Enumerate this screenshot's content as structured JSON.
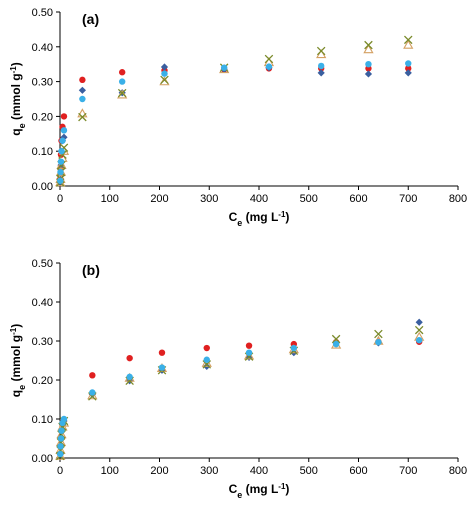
{
  "chart_data": [
    {
      "type": "scatter",
      "panel_label": "(a)",
      "xlabel": "Ce (mg L-1)",
      "ylabel": "qe (mmol g-1)",
      "xlim": [
        0,
        800
      ],
      "ylim": [
        0,
        0.5
      ],
      "xticks": [
        "0",
        "100",
        "200",
        "300",
        "400",
        "500",
        "600",
        "700",
        "800"
      ],
      "yticks": [
        "0.00",
        "0.10",
        "0.20",
        "0.30",
        "0.40",
        "0.50"
      ],
      "grid": false,
      "series": [
        {
          "marker": "circle",
          "color": "#e02020",
          "points": [
            [
              0.5,
              0.02
            ],
            [
              1,
              0.05
            ],
            [
              2,
              0.09
            ],
            [
              3,
              0.13
            ],
            [
              5,
              0.17
            ],
            [
              8,
              0.2
            ],
            [
              45,
              0.305
            ],
            [
              125,
              0.327
            ],
            [
              210,
              0.332
            ],
            [
              330,
              0.335
            ],
            [
              420,
              0.338
            ],
            [
              525,
              0.338
            ],
            [
              620,
              0.338
            ],
            [
              700,
              0.338
            ]
          ]
        },
        {
          "marker": "diamond",
          "color": "#3a5fa0",
          "points": [
            [
              0.5,
              0.01
            ],
            [
              1,
              0.03
            ],
            [
              2,
              0.06
            ],
            [
              3,
              0.1
            ],
            [
              5,
              0.13
            ],
            [
              8,
              0.14
            ],
            [
              45,
              0.275
            ],
            [
              125,
              0.268
            ],
            [
              210,
              0.342
            ],
            [
              330,
              0.335
            ],
            [
              420,
              0.34
            ],
            [
              525,
              0.325
            ],
            [
              620,
              0.322
            ],
            [
              700,
              0.325
            ]
          ]
        },
        {
          "marker": "triangle",
          "color": "#d4a062",
          "points": [
            [
              0.5,
              0.01
            ],
            [
              1,
              0.02
            ],
            [
              2,
              0.04
            ],
            [
              3,
              0.06
            ],
            [
              5,
              0.08
            ],
            [
              8,
              0.1
            ],
            [
              45,
              0.208
            ],
            [
              125,
              0.262
            ],
            [
              210,
              0.3
            ],
            [
              330,
              0.335
            ],
            [
              420,
              0.355
            ],
            [
              525,
              0.378
            ],
            [
              620,
              0.392
            ],
            [
              700,
              0.405
            ]
          ]
        },
        {
          "marker": "cross",
          "color": "#7a8a2a",
          "points": [
            [
              0.5,
              0.01
            ],
            [
              1,
              0.02
            ],
            [
              2,
              0.04
            ],
            [
              3,
              0.06
            ],
            [
              5,
              0.09
            ],
            [
              8,
              0.11
            ],
            [
              45,
              0.198
            ],
            [
              125,
              0.267
            ],
            [
              210,
              0.305
            ],
            [
              330,
              0.34
            ],
            [
              420,
              0.365
            ],
            [
              525,
              0.388
            ],
            [
              620,
              0.405
            ],
            [
              700,
              0.42
            ]
          ]
        },
        {
          "marker": "circle",
          "color": "#3ab0e8",
          "points": [
            [
              0.5,
              0.015
            ],
            [
              1,
              0.04
            ],
            [
              2,
              0.07
            ],
            [
              3,
              0.1
            ],
            [
              5,
              0.13
            ],
            [
              8,
              0.16
            ],
            [
              45,
              0.25
            ],
            [
              125,
              0.3
            ],
            [
              210,
              0.323
            ],
            [
              330,
              0.34
            ],
            [
              420,
              0.343
            ],
            [
              525,
              0.345
            ],
            [
              620,
              0.35
            ],
            [
              700,
              0.352
            ]
          ]
        }
      ]
    },
    {
      "type": "scatter",
      "panel_label": "(b)",
      "xlabel": "Ce (mg L-1)",
      "ylabel": "qe (mmol g-1)",
      "xlim": [
        0,
        800
      ],
      "ylim": [
        0,
        0.5
      ],
      "xticks": [
        "0",
        "100",
        "200",
        "300",
        "400",
        "500",
        "600",
        "700",
        "800"
      ],
      "yticks": [
        "0.00",
        "0.10",
        "0.20",
        "0.30",
        "0.40",
        "0.50"
      ],
      "grid": false,
      "series": [
        {
          "marker": "circle",
          "color": "#e02020",
          "points": [
            [
              0.5,
              0.01
            ],
            [
              1,
              0.03
            ],
            [
              2,
              0.05
            ],
            [
              3,
              0.07
            ],
            [
              5,
              0.09
            ],
            [
              65,
              0.212
            ],
            [
              140,
              0.256
            ],
            [
              205,
              0.27
            ],
            [
              295,
              0.282
            ],
            [
              380,
              0.288
            ],
            [
              470,
              0.292
            ],
            [
              555,
              0.297
            ],
            [
              640,
              0.298
            ],
            [
              722,
              0.298
            ]
          ]
        },
        {
          "marker": "diamond",
          "color": "#3a5fa0",
          "points": [
            [
              0.5,
              0.01
            ],
            [
              1,
              0.03
            ],
            [
              2,
              0.05
            ],
            [
              3,
              0.07
            ],
            [
              5,
              0.085
            ],
            [
              8,
              0.095
            ],
            [
              65,
              0.163
            ],
            [
              140,
              0.198
            ],
            [
              205,
              0.225
            ],
            [
              295,
              0.235
            ],
            [
              380,
              0.258
            ],
            [
              470,
              0.27
            ],
            [
              555,
              0.295
            ],
            [
              640,
              0.295
            ],
            [
              722,
              0.348
            ]
          ]
        },
        {
          "marker": "triangle",
          "color": "#d4a062",
          "points": [
            [
              0.5,
              0.005
            ],
            [
              1,
              0.02
            ],
            [
              2,
              0.04
            ],
            [
              3,
              0.06
            ],
            [
              5,
              0.08
            ],
            [
              8,
              0.09
            ],
            [
              65,
              0.16
            ],
            [
              140,
              0.205
            ],
            [
              205,
              0.23
            ],
            [
              295,
              0.243
            ],
            [
              380,
              0.262
            ],
            [
              470,
              0.278
            ],
            [
              555,
              0.29
            ],
            [
              640,
              0.3
            ],
            [
              722,
              0.31
            ]
          ]
        },
        {
          "marker": "cross",
          "color": "#7a8a2a",
          "points": [
            [
              0.5,
              0.005
            ],
            [
              1,
              0.02
            ],
            [
              2,
              0.04
            ],
            [
              3,
              0.06
            ],
            [
              5,
              0.08
            ],
            [
              8,
              0.095
            ],
            [
              65,
              0.158
            ],
            [
              140,
              0.198
            ],
            [
              205,
              0.225
            ],
            [
              295,
              0.24
            ],
            [
              380,
              0.26
            ],
            [
              470,
              0.275
            ],
            [
              555,
              0.305
            ],
            [
              640,
              0.318
            ],
            [
              722,
              0.328
            ]
          ]
        },
        {
          "marker": "circle",
          "color": "#3ab0e8",
          "points": [
            [
              0.5,
              0.01
            ],
            [
              1,
              0.03
            ],
            [
              2,
              0.05
            ],
            [
              3,
              0.07
            ],
            [
              5,
              0.09
            ],
            [
              8,
              0.1
            ],
            [
              65,
              0.168
            ],
            [
              140,
              0.208
            ],
            [
              205,
              0.232
            ],
            [
              295,
              0.252
            ],
            [
              380,
              0.27
            ],
            [
              470,
              0.282
            ],
            [
              555,
              0.292
            ],
            [
              640,
              0.297
            ],
            [
              722,
              0.302
            ]
          ]
        }
      ]
    }
  ]
}
